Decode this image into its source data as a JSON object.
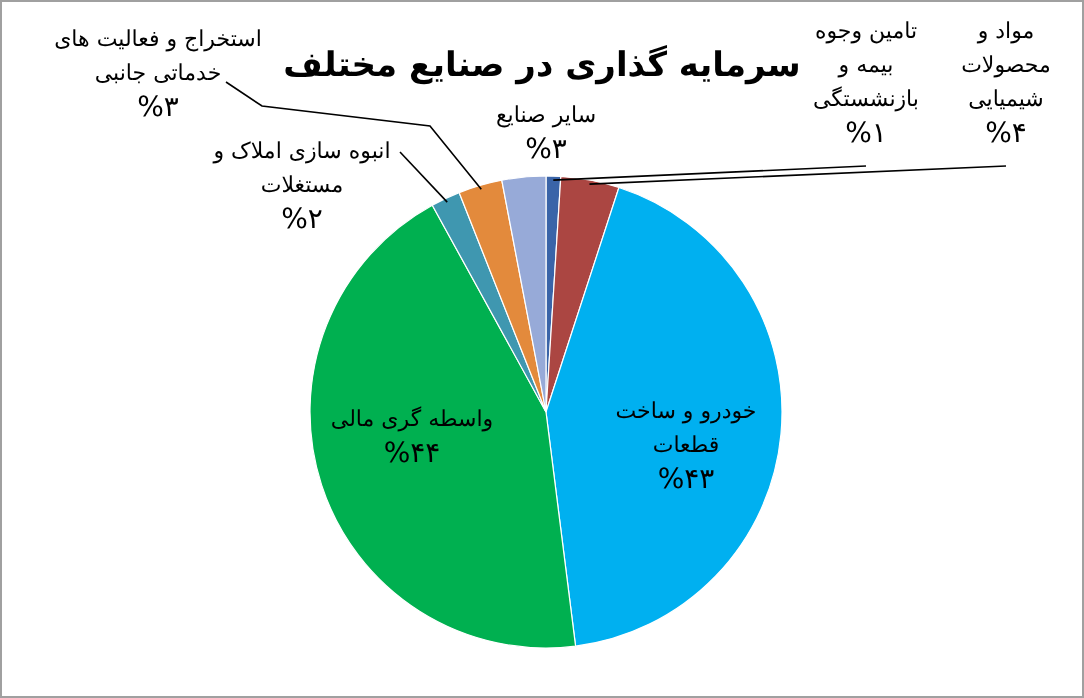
{
  "chart_data": {
    "type": "pie",
    "title": "سرمایه گذاری در صنایع مختلف",
    "categories": [
      "تامین وجوه بیمه و بازنشستگی",
      "مواد و محصولات شیمیایی",
      "خودرو و ساخت قطعات",
      "واسطه گری مالی",
      "انبوه سازی املاک و مستغلات",
      "استخراج و فعالیت های خدماتی جانبی",
      "سایر صنایع"
    ],
    "values": [
      1,
      4,
      43,
      44,
      2,
      3,
      3
    ],
    "value_labels": [
      "%۱",
      "%۴",
      "%۴۳",
      "%۴۴",
      "%۲",
      "%۳",
      "%۳"
    ],
    "colors": [
      "#3a64a8",
      "#ab4642",
      "#00b0f0",
      "#00b050",
      "#3f97b0",
      "#e38a3c",
      "#97aad8"
    ]
  }
}
